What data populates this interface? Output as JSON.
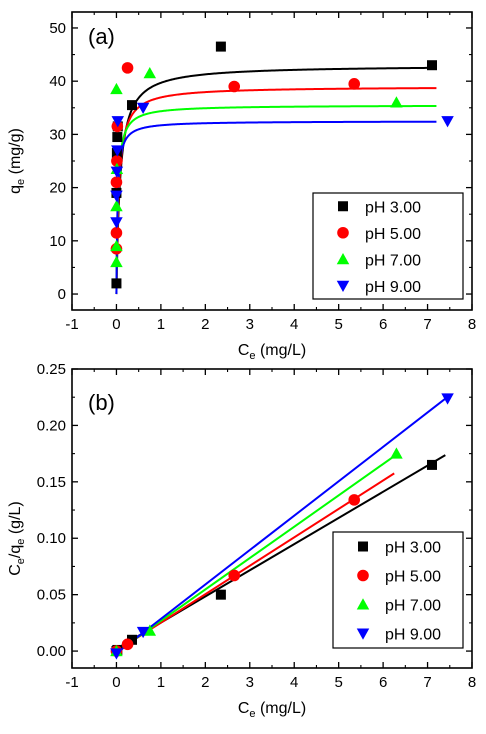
{
  "chart_data": [
    {
      "type": "scatter",
      "panel_label": "(a)",
      "xlabel": {
        "main": "C",
        "sub": "e",
        "rest": " (mg/L)"
      },
      "ylabel": {
        "main": "q",
        "sub": "e",
        "rest": " (mg/g)"
      },
      "xlim": [
        -1,
        8
      ],
      "ylim": [
        -3,
        53
      ],
      "xticks": [
        "-1",
        "0",
        "1",
        "2",
        "3",
        "4",
        "5",
        "6",
        "7",
        "8"
      ],
      "yticks": [
        "0",
        "10",
        "20",
        "30",
        "40",
        "50"
      ],
      "xtick_values": [
        -1,
        0,
        1,
        2,
        3,
        4,
        5,
        6,
        7,
        8
      ],
      "ytick_values": [
        0,
        10,
        20,
        30,
        40,
        50
      ],
      "grid": false,
      "legend_position": "bottom-right",
      "fit": {
        "model": "Langmuir",
        "x_range": [
          0.0,
          7.2
        ]
      },
      "series": [
        {
          "name": "pH 3.00",
          "marker": "square",
          "color": "#000000",
          "points": [
            [
              0.0,
              2.0
            ],
            [
              0.0,
              19.0
            ],
            [
              0.01,
              26.5
            ],
            [
              0.02,
              29.5
            ],
            [
              0.03,
              31.5
            ],
            [
              0.35,
              35.5
            ],
            [
              2.35,
              46.5
            ],
            [
              7.1,
              43.0
            ]
          ],
          "fit_params": {
            "qmax": 43.0,
            "KL": 12
          }
        },
        {
          "name": "pH 5.00",
          "marker": "circle",
          "color": "#ff0000",
          "points": [
            [
              0.0,
              8.5
            ],
            [
              0.0,
              11.5
            ],
            [
              0.0,
              21.0
            ],
            [
              0.01,
              25.0
            ],
            [
              0.02,
              31.5
            ],
            [
              0.25,
              42.5
            ],
            [
              2.65,
              39.0
            ],
            [
              5.35,
              39.5
            ]
          ],
          "fit_params": {
            "qmax": 39.0,
            "KL": 18
          }
        },
        {
          "name": "pH 7.00",
          "marker": "triangle-up",
          "color": "#00ff00",
          "points": [
            [
              0.0,
              6.0
            ],
            [
              0.0,
              9.0
            ],
            [
              0.0,
              16.5
            ],
            [
              0.01,
              23.5
            ],
            [
              0.0,
              38.5
            ],
            [
              0.75,
              41.5
            ],
            [
              6.3,
              36.0
            ]
          ],
          "fit_params": {
            "qmax": 35.5,
            "KL": 30
          }
        },
        {
          "name": "pH 9.00",
          "marker": "triangle-down",
          "color": "#0000ff",
          "points": [
            [
              0.0,
              13.5
            ],
            [
              0.0,
              18.5
            ],
            [
              0.01,
              23.0
            ],
            [
              0.02,
              27.0
            ],
            [
              0.03,
              32.5
            ],
            [
              0.6,
              35.0
            ],
            [
              7.45,
              32.5
            ]
          ],
          "fit_params": {
            "qmax": 32.5,
            "KL": 40
          }
        }
      ]
    },
    {
      "type": "scatter",
      "panel_label": "(b)",
      "xlabel": {
        "main": "C",
        "sub": "e",
        "rest": " (mg/L)"
      },
      "ylabel": {
        "main": "C",
        "sub": "e",
        "mid": "/q",
        "sub2": "e",
        "rest": " (g/L)"
      },
      "xlim": [
        -1,
        8
      ],
      "ylim": [
        -0.015,
        0.25
      ],
      "xticks": [
        "-1",
        "0",
        "1",
        "2",
        "3",
        "4",
        "5",
        "6",
        "7",
        "8"
      ],
      "yticks": [
        "0.00",
        "0.05",
        "0.10",
        "0.15",
        "0.20",
        "0.25"
      ],
      "xtick_values": [
        -1,
        0,
        1,
        2,
        3,
        4,
        5,
        6,
        7,
        8
      ],
      "ytick_values": [
        0.0,
        0.05,
        0.1,
        0.15,
        0.2,
        0.25
      ],
      "grid": false,
      "legend_position": "bottom-right",
      "fit": {
        "model": "linear"
      },
      "series": [
        {
          "name": "pH 3.00",
          "marker": "square",
          "color": "#000000",
          "points": [
            [
              0.0,
              0.0
            ],
            [
              0.02,
              0.001
            ],
            [
              0.35,
              0.01
            ],
            [
              2.35,
              0.05
            ],
            [
              7.1,
              0.165
            ]
          ],
          "line": {
            "slope": 0.0232,
            "intercept": 0.002,
            "x_range": [
              0.0,
              7.4
            ]
          }
        },
        {
          "name": "pH 5.00",
          "marker": "circle",
          "color": "#ff0000",
          "points": [
            [
              0.0,
              0.0
            ],
            [
              0.25,
              0.006
            ],
            [
              2.65,
              0.067
            ],
            [
              5.35,
              0.134
            ]
          ],
          "line": {
            "slope": 0.0252,
            "intercept": 0.0,
            "x_range": [
              0.0,
              6.25
            ]
          }
        },
        {
          "name": "pH 7.00",
          "marker": "triangle-up",
          "color": "#00ff00",
          "points": [
            [
              0.0,
              0.0
            ],
            [
              0.75,
              0.018
            ],
            [
              6.3,
              0.175
            ]
          ],
          "line": {
            "slope": 0.0278,
            "intercept": -0.001,
            "x_range": [
              0.0,
              6.3
            ]
          }
        },
        {
          "name": "pH 9.00",
          "marker": "triangle-down",
          "color": "#0000ff",
          "points": [
            [
              0.0,
              -0.002
            ],
            [
              0.6,
              0.017
            ],
            [
              7.45,
              0.224
            ]
          ],
          "line": {
            "slope": 0.0305,
            "intercept": -0.002,
            "x_range": [
              0.0,
              7.45
            ]
          }
        }
      ]
    }
  ]
}
